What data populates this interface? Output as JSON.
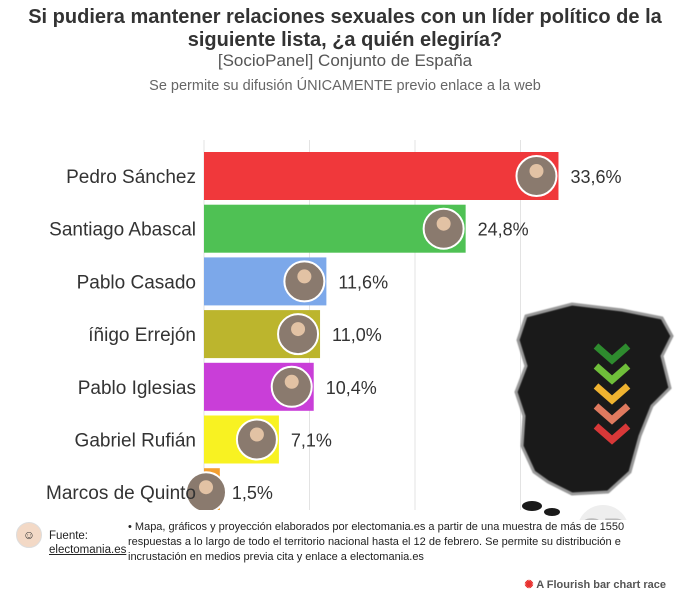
{
  "header": {
    "title": "Si pudiera mantener relaciones sexuales con un líder político de la siguiente lista, ¿a quién elegiría?",
    "subtitle": "[SocioPanel] Conjunto de España",
    "note": "Se permite su difusión ÚNICAMENTE previo enlace a la web"
  },
  "chart_data": {
    "type": "bar",
    "orientation": "horizontal",
    "categories": [
      "Pedro Sánchez",
      "Santiago Abascal",
      "Pablo Casado",
      "íñigo Errejón",
      "Pablo Iglesias",
      "Gabriel Rufián",
      "Marcos de Quinto"
    ],
    "values": [
      33.6,
      24.8,
      11.6,
      11.0,
      10.4,
      7.1,
      1.5
    ],
    "value_labels": [
      "33,6%",
      "24,8%",
      "11,6%",
      "11,0%",
      "10,4%",
      "7,1%",
      "1,5%"
    ],
    "colors": [
      "#f0383b",
      "#4fc154",
      "#7ca8ea",
      "#bcb52d",
      "#c93ed8",
      "#f8f222",
      "#f39f31"
    ],
    "xlim": [
      0,
      40
    ],
    "grid": true
  },
  "footer": {
    "source_label": "Fuente:",
    "source_link": "electomania.es",
    "text": "• Mapa, gráficos y proyección elaborados por electomania.es a partir de una muestra de más de 1550 respuestas a lo largo de todo el territorio nacional hasta el 12 de febrero. Se permite su distribución e incrustación en medios previa cita y enlace a electomania.es",
    "flourish": "A Flourish bar chart race"
  },
  "decor": {
    "watermark_logo": "SP",
    "chevron_colors": [
      "#2e8b2e",
      "#6fbf3a",
      "#f0b330",
      "#e07a5f",
      "#d83838"
    ]
  }
}
